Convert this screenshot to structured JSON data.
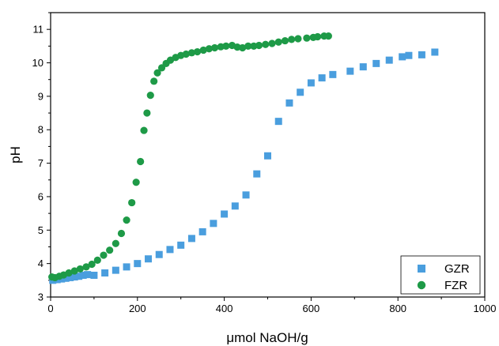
{
  "chart_data": {
    "type": "scatter",
    "title": "",
    "xlabel": "μmol NaOH/g",
    "ylabel": "pH",
    "xlim": [
      0,
      1000
    ],
    "ylim": [
      3,
      11.5
    ],
    "xticks": [
      0,
      200,
      400,
      600,
      800,
      1000
    ],
    "yticks": [
      3,
      4,
      5,
      6,
      7,
      8,
      9,
      10,
      11
    ],
    "grid": false,
    "legend_position": "bottom-right",
    "series": [
      {
        "name": "GZR",
        "marker": "square",
        "color": "#4a9ede",
        "x": [
          5,
          15,
          25,
          35,
          45,
          55,
          65,
          75,
          85,
          100,
          125,
          150,
          175,
          200,
          225,
          250,
          275,
          300,
          325,
          350,
          375,
          400,
          425,
          450,
          475,
          500,
          525,
          550,
          575,
          600,
          625,
          650,
          690,
          720,
          750,
          780,
          810,
          825,
          855,
          885
        ],
        "y": [
          3.5,
          3.52,
          3.54,
          3.56,
          3.58,
          3.6,
          3.62,
          3.65,
          3.67,
          3.65,
          3.72,
          3.8,
          3.9,
          4.0,
          4.14,
          4.27,
          4.42,
          4.55,
          4.75,
          4.95,
          5.2,
          5.48,
          5.72,
          6.05,
          6.68,
          7.22,
          8.25,
          8.8,
          9.12,
          9.4,
          9.55,
          9.65,
          9.75,
          9.88,
          9.98,
          10.08,
          10.18,
          10.22,
          10.24,
          10.32
        ]
      },
      {
        "name": "FZR",
        "marker": "circle",
        "color": "#1e9a47",
        "x": [
          3,
          10,
          20,
          30,
          42,
          55,
          68,
          82,
          95,
          108,
          122,
          136,
          150,
          163,
          175,
          187,
          197,
          207,
          215,
          222,
          230,
          238,
          246,
          256,
          266,
          276,
          288,
          300,
          312,
          325,
          338,
          352,
          365,
          378,
          392,
          404,
          418,
          430,
          442,
          455,
          468,
          480,
          495,
          510,
          525,
          540,
          555,
          570,
          590,
          605,
          615,
          630,
          640
        ],
        "y": [
          3.6,
          3.58,
          3.62,
          3.66,
          3.72,
          3.78,
          3.84,
          3.9,
          3.98,
          4.1,
          4.25,
          4.4,
          4.6,
          4.9,
          5.3,
          5.82,
          6.43,
          7.05,
          7.98,
          8.5,
          9.03,
          9.45,
          9.7,
          9.85,
          9.98,
          10.08,
          10.16,
          10.22,
          10.26,
          10.3,
          10.33,
          10.38,
          10.42,
          10.45,
          10.48,
          10.5,
          10.52,
          10.47,
          10.45,
          10.5,
          10.5,
          10.52,
          10.55,
          10.58,
          10.62,
          10.66,
          10.7,
          10.72,
          10.74,
          10.76,
          10.78,
          10.8,
          10.8
        ]
      }
    ]
  }
}
